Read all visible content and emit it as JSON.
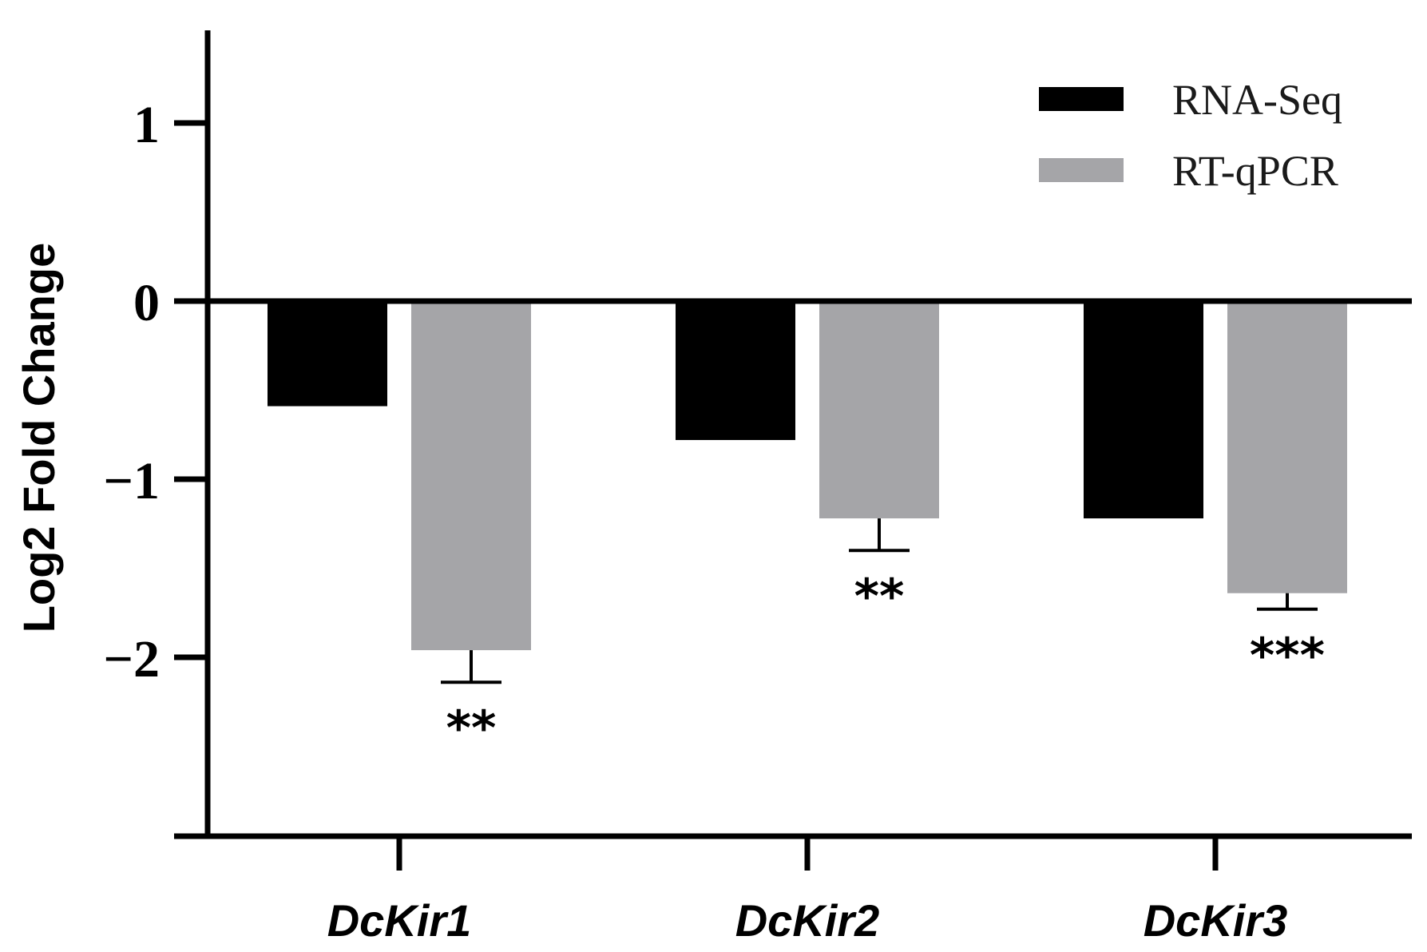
{
  "chart_data": {
    "type": "bar",
    "title": "",
    "xlabel": "",
    "ylabel": "Log2 Fold Change",
    "ylim": [
      -3,
      1.5
    ],
    "yticks": [
      1,
      0,
      -1,
      -2
    ],
    "ytick_labels": [
      "1",
      "0",
      "−1",
      "−2"
    ],
    "categories": [
      "DcKir1",
      "DcKir2",
      "DcKir3"
    ],
    "series": [
      {
        "name": "RNA-Seq",
        "color": "#000000",
        "values": [
          -0.59,
          -0.78,
          -1.22
        ],
        "errors": [
          null,
          null,
          null
        ]
      },
      {
        "name": "RT-qPCR",
        "color": "#a5a5a8",
        "values": [
          -1.96,
          -1.22,
          -1.64
        ],
        "errors": [
          0.18,
          0.18,
          0.09
        ]
      }
    ],
    "significance": [
      "**",
      "**",
      "***"
    ],
    "legend": {
      "position": "top-right"
    }
  }
}
